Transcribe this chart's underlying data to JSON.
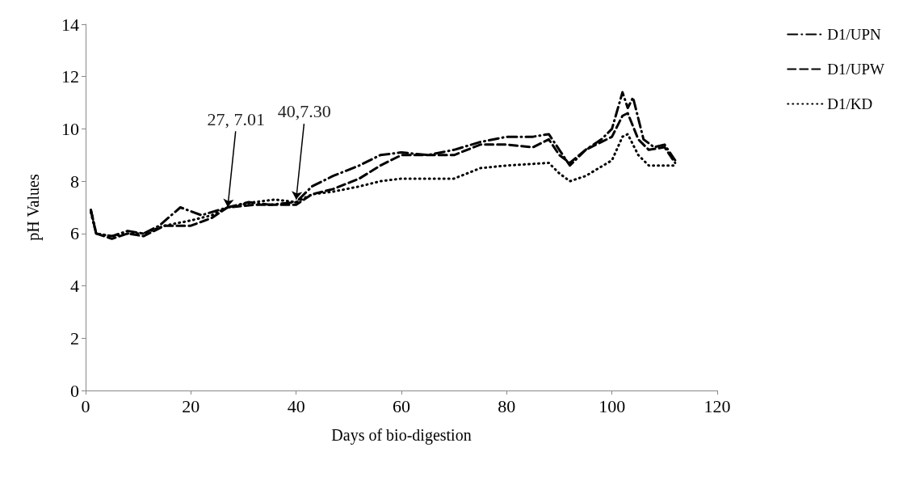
{
  "chart_data": {
    "type": "line",
    "xlabel": "Days of bio-digestion",
    "ylabel": "pH Values",
    "xlim": [
      0,
      120
    ],
    "xticks": [
      0,
      20,
      40,
      60,
      80,
      100,
      120
    ],
    "ylim": [
      0,
      14
    ],
    "yticks": [
      0,
      2,
      4,
      6,
      8,
      10,
      12,
      14
    ],
    "grid": false,
    "legend": "right",
    "marker": "none",
    "annotations": [
      {
        "text": "27, 7.01",
        "x": 27,
        "y": 7.01
      },
      {
        "text": "40,7.30",
        "x": 40,
        "y": 7.3
      }
    ],
    "series": [
      {
        "name": "D1/UPN",
        "color": "#000000",
        "line_style": "dashdot",
        "x": [
          1,
          2,
          5,
          8,
          11,
          14,
          18,
          22,
          27,
          31,
          35,
          40,
          43,
          47,
          52,
          56,
          60,
          65,
          70,
          75,
          80,
          85,
          88,
          90,
          92,
          95,
          98,
          100,
          102,
          103,
          104,
          106,
          108,
          110,
          112
        ],
        "values": [
          6.9,
          6.0,
          5.9,
          6.1,
          6.0,
          6.3,
          7.0,
          6.7,
          7.0,
          7.2,
          7.1,
          7.2,
          7.8,
          8.2,
          8.6,
          9.0,
          9.1,
          9.0,
          9.2,
          9.5,
          9.7,
          9.7,
          9.8,
          9.2,
          8.6,
          9.2,
          9.6,
          10.0,
          11.4,
          10.8,
          11.2,
          9.6,
          9.3,
          9.4,
          8.8
        ]
      },
      {
        "name": "D1/UPW",
        "color": "#000000",
        "line_style": "dashed",
        "x": [
          1,
          2,
          5,
          8,
          11,
          15,
          20,
          24,
          27,
          32,
          36,
          40,
          43,
          47,
          52,
          56,
          60,
          65,
          70,
          75,
          80,
          85,
          88,
          90,
          92,
          95,
          98,
          100,
          102,
          103,
          105,
          107,
          110,
          112
        ],
        "values": [
          6.9,
          6.0,
          5.8,
          6.0,
          5.9,
          6.3,
          6.3,
          6.6,
          7.0,
          7.1,
          7.1,
          7.1,
          7.5,
          7.7,
          8.1,
          8.6,
          9.0,
          9.0,
          9.0,
          9.4,
          9.4,
          9.3,
          9.6,
          9.0,
          8.7,
          9.2,
          9.5,
          9.7,
          10.5,
          10.6,
          9.6,
          9.2,
          9.3,
          8.7
        ]
      },
      {
        "name": "D1/KD",
        "color": "#000000",
        "line_style": "dotted",
        "x": [
          1,
          2,
          5,
          8,
          11,
          15,
          20,
          24,
          27,
          32,
          36,
          40,
          43,
          47,
          52,
          56,
          60,
          70,
          75,
          80,
          88,
          90,
          92,
          95,
          100,
          102,
          103,
          105,
          107,
          110,
          112
        ],
        "values": [
          6.8,
          6.0,
          5.9,
          6.0,
          6.0,
          6.3,
          6.5,
          6.7,
          7.0,
          7.2,
          7.3,
          7.2,
          7.5,
          7.6,
          7.8,
          8.0,
          8.1,
          8.1,
          8.5,
          8.6,
          8.7,
          8.3,
          8.0,
          8.2,
          8.8,
          9.7,
          9.8,
          9.0,
          8.6,
          8.6,
          8.6
        ]
      }
    ]
  }
}
